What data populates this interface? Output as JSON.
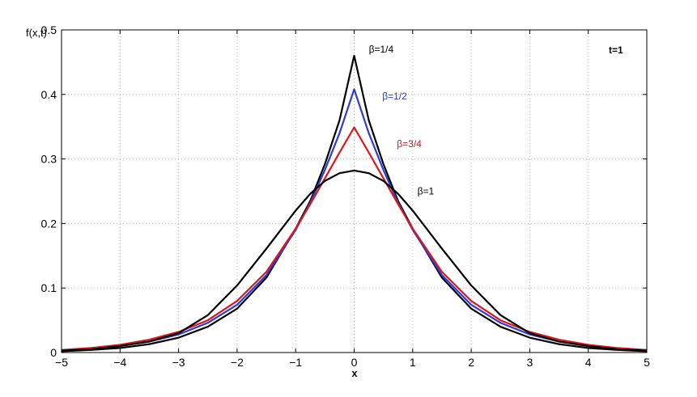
{
  "chart_data": {
    "type": "line",
    "title": "",
    "xlabel": "x",
    "ylabel": "f(x,t)",
    "annotation": "t=1",
    "xlim": [
      -5,
      5
    ],
    "ylim": [
      0,
      0.5
    ],
    "x_ticks": [
      -5,
      -4,
      -3,
      -2,
      -1,
      0,
      1,
      2,
      3,
      4,
      5
    ],
    "y_ticks": [
      0,
      0.1,
      0.2,
      0.3,
      0.4,
      0.5
    ],
    "x_tick_labels": [
      "−5",
      "−4",
      "−3",
      "−2",
      "−1",
      "0",
      "1",
      "2",
      "3",
      "4",
      "5"
    ],
    "y_tick_labels": [
      "0",
      "0.1",
      "0.2",
      "0.3",
      "0.4",
      "0.5"
    ],
    "grid": true,
    "legend": "none",
    "series": [
      {
        "name": "β=1/4",
        "color": "#000000",
        "x": [
          -5,
          -4.5,
          -4,
          -3.5,
          -3,
          -2.5,
          -2,
          -1.5,
          -1,
          -0.75,
          -0.5,
          -0.25,
          0,
          0.25,
          0.5,
          0.75,
          1,
          1.5,
          2,
          2.5,
          3,
          3.5,
          4,
          4.5,
          5
        ],
        "y": [
          0.002,
          0.004,
          0.007,
          0.013,
          0.023,
          0.04,
          0.068,
          0.116,
          0.192,
          0.235,
          0.292,
          0.36,
          0.46,
          0.36,
          0.292,
          0.235,
          0.192,
          0.116,
          0.068,
          0.04,
          0.023,
          0.013,
          0.007,
          0.004,
          0.002
        ]
      },
      {
        "name": "β=1/2",
        "color": "#2b3bd6",
        "x": [
          -5,
          -4.5,
          -4,
          -3.5,
          -3,
          -2.5,
          -2,
          -1.5,
          -1,
          -0.75,
          -0.5,
          -0.25,
          0,
          0.25,
          0.5,
          0.75,
          1,
          1.5,
          2,
          2.5,
          3,
          3.5,
          4,
          4.5,
          5
        ],
        "y": [
          0.003,
          0.006,
          0.01,
          0.017,
          0.028,
          0.046,
          0.074,
          0.12,
          0.19,
          0.232,
          0.283,
          0.34,
          0.408,
          0.34,
          0.283,
          0.232,
          0.19,
          0.12,
          0.074,
          0.046,
          0.028,
          0.017,
          0.01,
          0.006,
          0.003
        ]
      },
      {
        "name": "β=3/4",
        "color": "#e0141c",
        "x": [
          -5,
          -4.5,
          -4,
          -3.5,
          -3,
          -2.5,
          -2,
          -1.5,
          -1,
          -0.75,
          -0.5,
          -0.25,
          0,
          0.25,
          0.5,
          0.75,
          1,
          1.5,
          2,
          2.5,
          3,
          3.5,
          4,
          4.5,
          5
        ],
        "y": [
          0.004,
          0.007,
          0.012,
          0.02,
          0.032,
          0.05,
          0.08,
          0.125,
          0.192,
          0.23,
          0.27,
          0.31,
          0.349,
          0.31,
          0.27,
          0.23,
          0.192,
          0.125,
          0.08,
          0.05,
          0.032,
          0.02,
          0.012,
          0.007,
          0.004
        ]
      },
      {
        "name": "β=1",
        "color": "#000000",
        "x": [
          -5,
          -4.5,
          -4,
          -3.5,
          -3,
          -2.5,
          -2,
          -1.5,
          -1,
          -0.75,
          -0.5,
          -0.25,
          0,
          0.25,
          0.5,
          0.75,
          1,
          1.5,
          2,
          2.5,
          3,
          3.5,
          4,
          4.5,
          5
        ],
        "y": [
          0.003,
          0.005,
          0.01,
          0.017,
          0.03,
          0.058,
          0.104,
          0.161,
          0.22,
          0.246,
          0.266,
          0.278,
          0.282,
          0.278,
          0.266,
          0.246,
          0.22,
          0.161,
          0.104,
          0.058,
          0.03,
          0.017,
          0.01,
          0.005,
          0.003
        ]
      }
    ],
    "labels": [
      {
        "text": "β=1/4",
        "x": 0.25,
        "y": 0.465,
        "color": "#000000"
      },
      {
        "text": "β=1/2",
        "x": 0.48,
        "y": 0.392,
        "color": "#2b3bd6"
      },
      {
        "text": "β=3/4",
        "x": 0.73,
        "y": 0.318,
        "color": "#e0141c"
      },
      {
        "text": "β=1",
        "x": 1.08,
        "y": 0.245,
        "color": "#000000"
      }
    ]
  }
}
